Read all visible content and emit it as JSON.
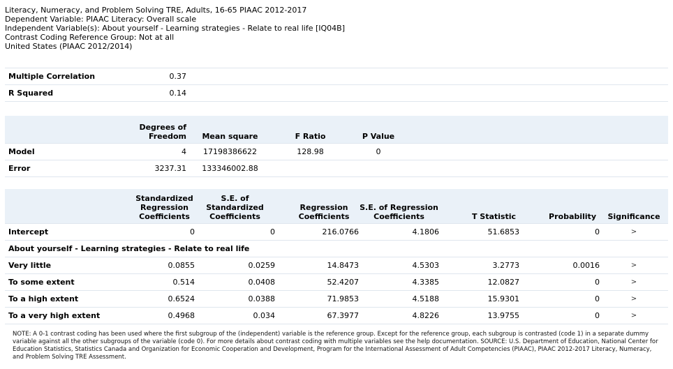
{
  "header": {
    "line1": "Literacy, Numeracy, and Problem Solving TRE, Adults, 16-65 PIAAC 2012-2017",
    "line2": "Dependent Variable: PIAAC Literacy: Overall scale",
    "line3": "Independent Variable(s): About yourself - Learning strategies - Relate to real life [IQ04B]",
    "line4": "Contrast Coding Reference Group: Not at all",
    "line5": "United States (PIAAC 2012/2014)"
  },
  "summary": {
    "mult_corr_label": "Multiple Correlation",
    "mult_corr_value": "0.37",
    "r2_label": "R Squared",
    "r2_value": "0.14"
  },
  "anova": {
    "headers": [
      "Degrees of Freedom",
      "Mean square",
      "F Ratio",
      "P Value"
    ],
    "rows": [
      {
        "label": "Model",
        "df": "4",
        "ms": "17198386622",
        "f": "128.98",
        "p": "0"
      },
      {
        "label": "Error",
        "df": "3237.31",
        "ms": "133346002.88",
        "f": "",
        "p": ""
      }
    ]
  },
  "coef": {
    "headers": [
      "Standardized Regression Coefficients",
      "S.E. of Standardized Coefficients",
      "Regression Coefficients",
      "S.E. of Regression Coefficients",
      "T Statistic",
      "Probability",
      "Significance"
    ],
    "intercept": {
      "label": "Intercept",
      "std": "0",
      "se_std": "0",
      "reg": "216.0766",
      "se_reg": "4.1806",
      "t": "51.6853",
      "p": "0",
      "sig": ">"
    },
    "section_label": "About yourself - Learning strategies - Relate to real life",
    "rows": [
      {
        "label": "Very little",
        "std": "0.0855",
        "se_std": "0.0259",
        "reg": "14.8473",
        "se_reg": "4.5303",
        "t": "3.2773",
        "p": "0.0016",
        "sig": ">"
      },
      {
        "label": "To some extent",
        "std": "0.514",
        "se_std": "0.0408",
        "reg": "52.4207",
        "se_reg": "4.3385",
        "t": "12.0827",
        "p": "0",
        "sig": ">"
      },
      {
        "label": "To a high extent",
        "std": "0.6524",
        "se_std": "0.0388",
        "reg": "71.9853",
        "se_reg": "4.5188",
        "t": "15.9301",
        "p": "0",
        "sig": ">"
      },
      {
        "label": "To a very high extent",
        "std": "0.4968",
        "se_std": "0.034",
        "reg": "67.3977",
        "se_reg": "4.8226",
        "t": "13.9755",
        "p": "0",
        "sig": ">"
      }
    ]
  },
  "note": "NOTE: A 0-1 contrast coding has been used where the first subgroup of the (independent) variable is the reference group. Except for the reference group, each subgroup is contrasted (code 1) in a separate dummy variable against all the other subgroups of the variable (code 0). For more details about contrast coding with multiple variables see the help documentation. SOURCE: U.S. Department of Education, National Center for Education Statistics, Statistics Canada and Organization for Economic Cooperation and Development, Program for the International Assessment of Adult Competencies (PIAAC), PIAAC 2012-2017 Literacy, Numeracy, and Problem Solving TRE Assessment."
}
